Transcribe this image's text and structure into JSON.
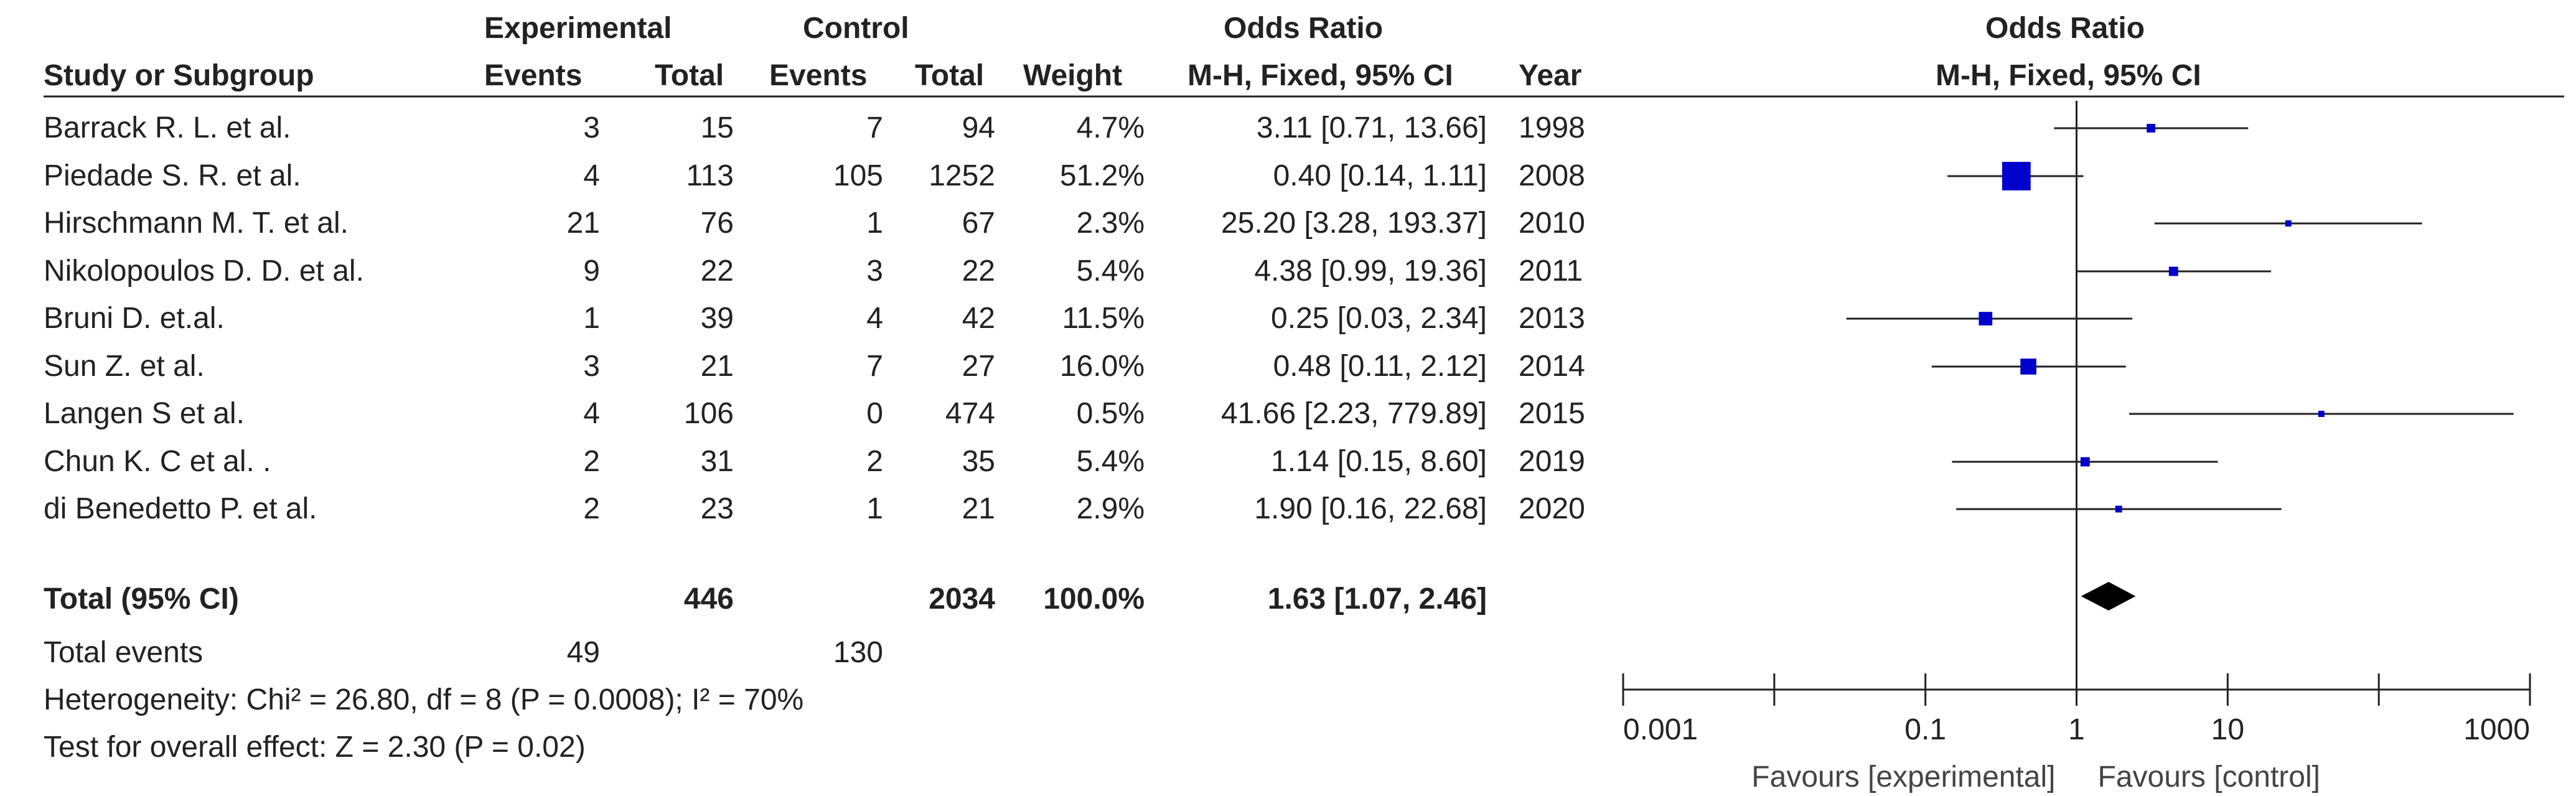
{
  "header": {
    "experimental": "Experimental",
    "control": "Control",
    "odds_ratio_left": "Odds Ratio",
    "odds_ratio_right": "Odds Ratio",
    "study_col": "Study or Subgroup",
    "events_exp": "Events",
    "total_exp": "Total",
    "events_ctrl": "Events",
    "total_ctrl": "Total",
    "weight": "Weight",
    "method_left": "M-H, Fixed, 95% CI",
    "year": "Year",
    "method_right": "M-H, Fixed, 95% CI"
  },
  "studies": [
    {
      "name": "Barrack R. L. et al.",
      "exp_events": "3",
      "exp_total": "15",
      "ctrl_events": "7",
      "ctrl_total": "94",
      "weight": "4.7%",
      "ci": "3.11 [0.71, 13.66]",
      "year": "1998"
    },
    {
      "name": "Piedade S. R. et al.",
      "exp_events": "4",
      "exp_total": "113",
      "ctrl_events": "105",
      "ctrl_total": "1252",
      "weight": "51.2%",
      "ci": "0.40 [0.14, 1.11]",
      "year": "2008"
    },
    {
      "name": "Hirschmann M. T. et al.",
      "exp_events": "21",
      "exp_total": "76",
      "ctrl_events": "1",
      "ctrl_total": "67",
      "weight": "2.3%",
      "ci": "25.20 [3.28, 193.37]",
      "year": "2010"
    },
    {
      "name": "Nikolopoulos D. D. et al.",
      "exp_events": "9",
      "exp_total": "22",
      "ctrl_events": "3",
      "ctrl_total": "22",
      "weight": "5.4%",
      "ci": "4.38 [0.99, 19.36]",
      "year": "2011"
    },
    {
      "name": "Bruni D. et.al.",
      "exp_events": "1",
      "exp_total": "39",
      "ctrl_events": "4",
      "ctrl_total": "42",
      "weight": "11.5%",
      "ci": "0.25 [0.03, 2.34]",
      "year": "2013"
    },
    {
      "name": "Sun Z. et al.",
      "exp_events": "3",
      "exp_total": "21",
      "ctrl_events": "7",
      "ctrl_total": "27",
      "weight": "16.0%",
      "ci": "0.48 [0.11, 2.12]",
      "year": "2014"
    },
    {
      "name": "Langen S et al.",
      "exp_events": "4",
      "exp_total": "106",
      "ctrl_events": "0",
      "ctrl_total": "474",
      "weight": "0.5%",
      "ci": "41.66 [2.23, 779.89]",
      "year": "2015"
    },
    {
      "name": "Chun K. C et al. .",
      "exp_events": "2",
      "exp_total": "31",
      "ctrl_events": "2",
      "ctrl_total": "35",
      "weight": "5.4%",
      "ci": "1.14 [0.15, 8.60]",
      "year": "2019"
    },
    {
      "name": "di Benedetto P. et al.",
      "exp_events": "2",
      "exp_total": "23",
      "ctrl_events": "1",
      "ctrl_total": "21",
      "weight": "2.9%",
      "ci": "1.90 [0.16, 22.68]",
      "year": "2020"
    }
  ],
  "total": {
    "label": "Total (95% CI)",
    "exp_total": "446",
    "ctrl_total": "2034",
    "weight": "100.0%",
    "ci": "1.63 [1.07, 2.46]"
  },
  "events": {
    "label": "Total events",
    "exp": "49",
    "ctrl": "130"
  },
  "heterogeneity": "Heterogeneity: Chi² = 26.80, df = 8 (P = 0.0008); I² = 70%",
  "overall_effect": "Test for overall effect: Z = 2.30 (P = 0.02)",
  "axis": {
    "ticks": [
      "0.001",
      "0.1",
      "1",
      "10",
      "1000"
    ],
    "favours_left": "Favours [experimental]",
    "favours_right": "Favours [control]"
  },
  "colors": {
    "square": "#0000cc",
    "diamond": "#000000",
    "text": "#222222"
  },
  "chart_data": {
    "type": "forest",
    "x_scale": "log",
    "xlim": [
      0.001,
      1000
    ],
    "ticks": [
      0.001,
      0.1,
      1,
      10,
      1000
    ],
    "categories": [
      "Barrack R. L. et al.",
      "Piedade S. R. et al.",
      "Hirschmann M. T. et al.",
      "Nikolopoulos D. D. et al.",
      "Bruni D. et.al.",
      "Sun Z. et al.",
      "Langen S et al.",
      "Chun K. C et al. .",
      "di Benedetto P. et al."
    ],
    "series": [
      {
        "or": 3.11,
        "lo": 0.71,
        "hi": 13.66,
        "weight": 4.7
      },
      {
        "or": 0.4,
        "lo": 0.14,
        "hi": 1.11,
        "weight": 51.2
      },
      {
        "or": 25.2,
        "lo": 3.28,
        "hi": 193.37,
        "weight": 2.3
      },
      {
        "or": 4.38,
        "lo": 0.99,
        "hi": 19.36,
        "weight": 5.4
      },
      {
        "or": 0.25,
        "lo": 0.03,
        "hi": 2.34,
        "weight": 11.5
      },
      {
        "or": 0.48,
        "lo": 0.11,
        "hi": 2.12,
        "weight": 16.0
      },
      {
        "or": 41.66,
        "lo": 2.23,
        "hi": 779.89,
        "weight": 0.5
      },
      {
        "or": 1.14,
        "lo": 0.15,
        "hi": 8.6,
        "weight": 5.4
      },
      {
        "or": 1.9,
        "lo": 0.16,
        "hi": 22.68,
        "weight": 2.9
      }
    ],
    "pooled": {
      "or": 1.63,
      "lo": 1.07,
      "hi": 2.46
    },
    "title": "Odds Ratio",
    "subtitle": "M-H, Fixed, 95% CI",
    "xlabel_left": "Favours [experimental]",
    "xlabel_right": "Favours [control]"
  }
}
